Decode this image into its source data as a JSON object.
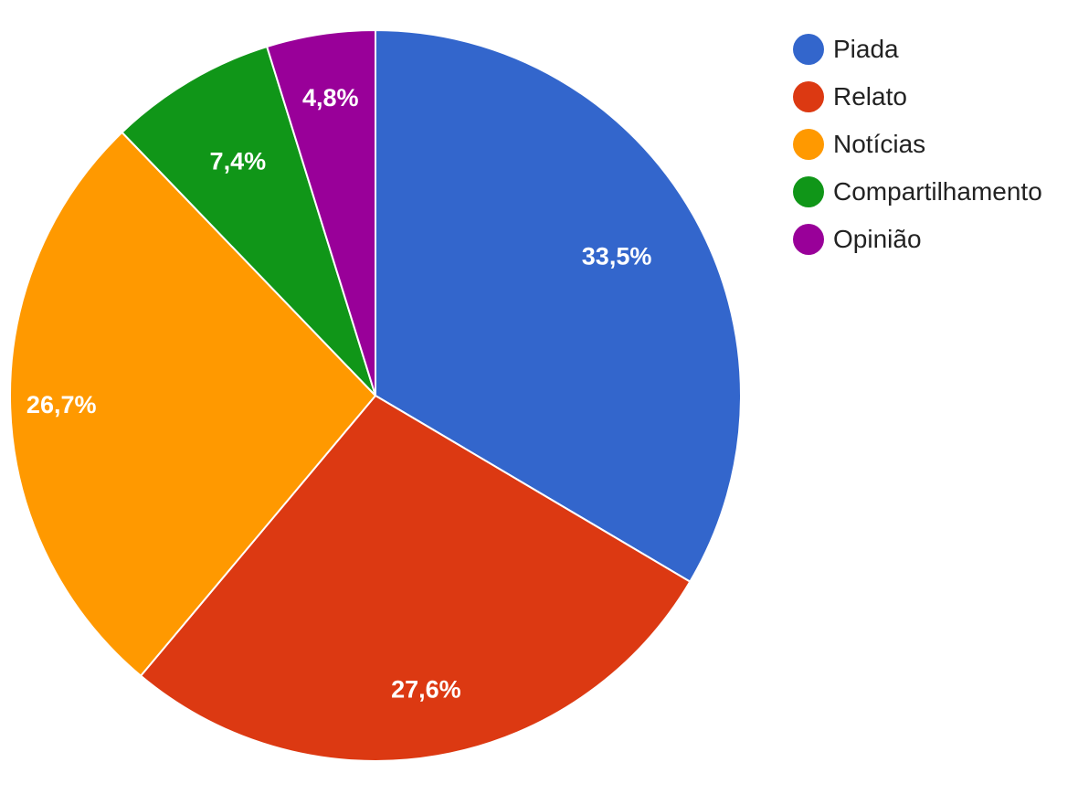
{
  "chart_data": {
    "type": "pie",
    "title": "",
    "categories": [
      "Piada",
      "Relato",
      "Notícias",
      "Compartilhamento",
      "Opinião"
    ],
    "values": [
      33.5,
      27.6,
      26.7,
      7.4,
      4.8
    ],
    "value_labels": [
      "33,5%",
      "27,6%",
      "26,7%",
      "7,4%",
      "4,8%"
    ],
    "colors": [
      "#3366cc",
      "#dc3912",
      "#ff9900",
      "#109618",
      "#990099"
    ],
    "start_angle": "12 o'clock",
    "direction": "clockwise",
    "legend_position": "right",
    "legend": [
      {
        "label": "Piada",
        "color": "#3366cc"
      },
      {
        "label": "Relato",
        "color": "#dc3912"
      },
      {
        "label": "Notícias",
        "color": "#ff9900"
      },
      {
        "label": "Compartilhamento",
        "color": "#109618"
      },
      {
        "label": "Opinião",
        "color": "#990099"
      }
    ]
  }
}
